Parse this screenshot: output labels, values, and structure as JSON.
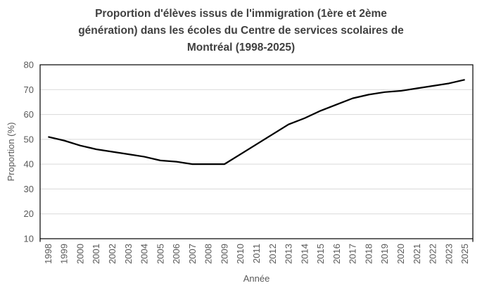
{
  "title": {
    "lines": [
      "Proportion d'élèves issus de l'immigration (1ère et 2ème",
      "génération) dans les écoles du Centre de services scolaires de",
      "Montréal (1998-2025)"
    ],
    "full": "Proportion d'élèves issus de l'immigration (1ère et 2ème génération) dans les écoles du Centre de services scolaires de Montréal (1998-2025)"
  },
  "chart_data": {
    "type": "line",
    "title": "Proportion d'élèves issus de l'immigration (1ère et 2ème génération) dans les écoles du Centre de services scolaires de Montréal (1998-2025)",
    "xlabel": "Année",
    "ylabel": "Proportion (%)",
    "categories": [
      "1998",
      "1999",
      "2000",
      "2001",
      "2002",
      "2003",
      "2004",
      "2005",
      "2006",
      "2007",
      "2008",
      "2009",
      "2010",
      "2011",
      "2012",
      "2013",
      "2014",
      "2015",
      "2016",
      "2017",
      "2018",
      "2019",
      "2020",
      "2021",
      "2022",
      "2023",
      "2025"
    ],
    "values": [
      51,
      49.5,
      47.5,
      46,
      45,
      44,
      43,
      41.5,
      41,
      40,
      40,
      40,
      44,
      48,
      52,
      56,
      58.5,
      61.5,
      64,
      66.5,
      68,
      69,
      69.5,
      70.5,
      71.5,
      72.5,
      74
    ],
    "ylim": [
      10,
      80
    ],
    "ytick_step": 10,
    "grid": "horizontal",
    "legend": "none",
    "line_width": 2.25
  },
  "colors": {
    "title": "#404040",
    "tick_label": "#595959",
    "axis_title": "#595959",
    "gridline": "#D9D9D9",
    "axis_border": "#000000",
    "line": "#000000",
    "background": "#FFFFFF"
  }
}
